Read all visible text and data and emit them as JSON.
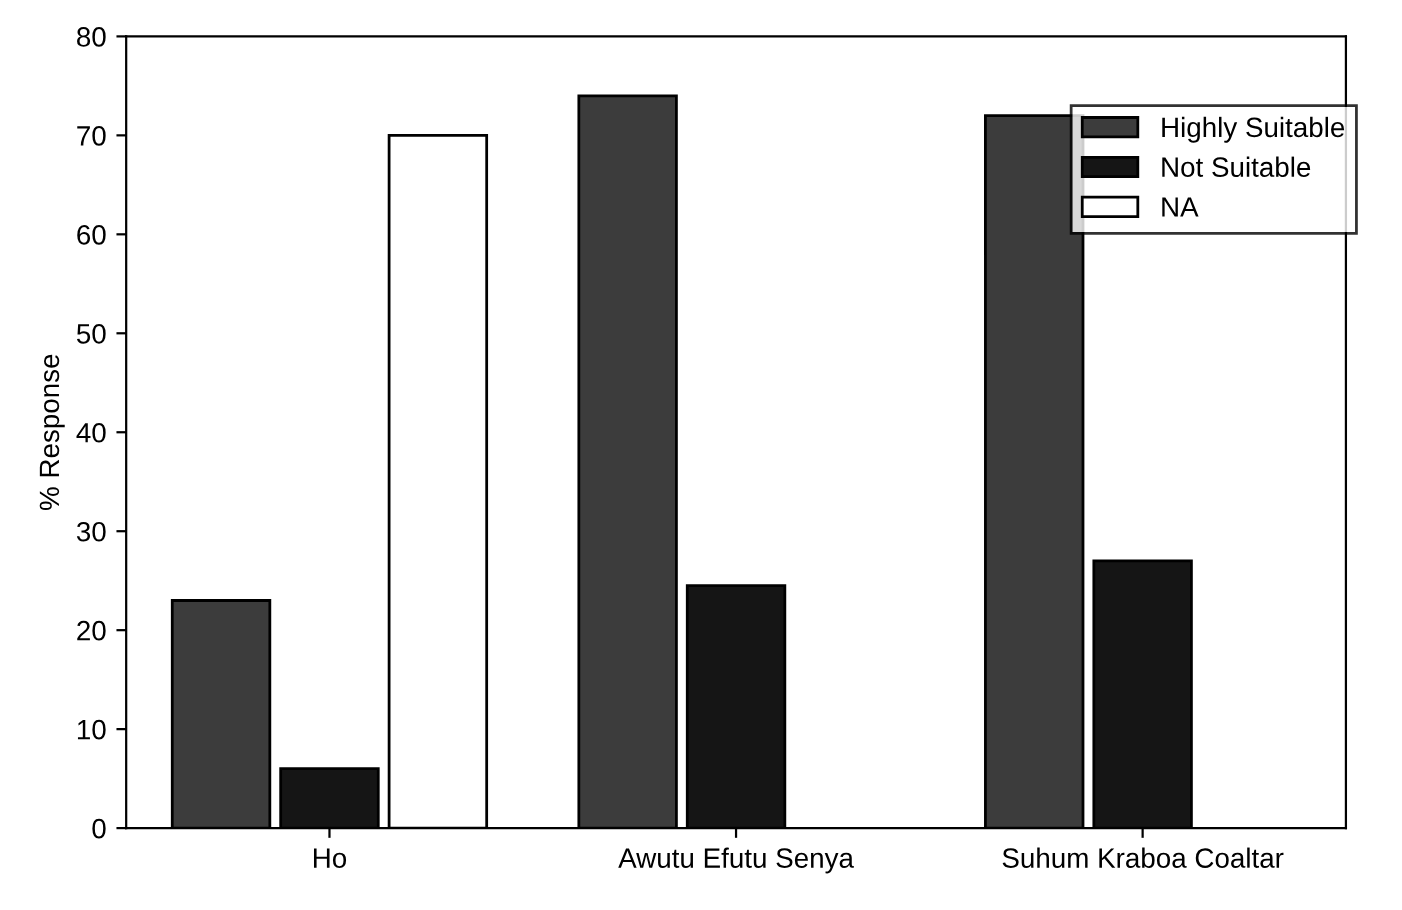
{
  "chart_data": {
    "type": "bar",
    "ylabel": "% Response",
    "categories": [
      "Ho",
      "Awutu Efutu Senya",
      "Suhum Kraboa Coaltar"
    ],
    "series": [
      {
        "name": "Highly Suitable",
        "color": "#3c3c3c",
        "values": [
          23,
          74,
          72
        ]
      },
      {
        "name": "Not Suitable",
        "color": "#151515",
        "values": [
          6,
          24.5,
          27
        ]
      },
      {
        "name": "NA",
        "color": "#ffffff",
        "values": [
          70,
          null,
          null
        ]
      }
    ],
    "ylim": [
      0,
      80
    ],
    "yticks": [
      0,
      10,
      20,
      30,
      40,
      50,
      60,
      70,
      80
    ],
    "grid": false,
    "legend": "top right"
  }
}
